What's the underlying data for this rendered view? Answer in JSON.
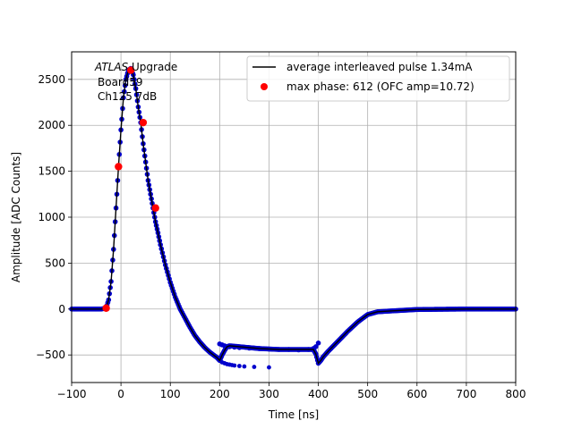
{
  "chart_data": {
    "type": "scatter",
    "title": "",
    "xlabel": "Time [ns]",
    "ylabel": "Amplitude [ADC Counts]",
    "xlim": [
      -100,
      800
    ],
    "ylim": [
      -800,
      2800
    ],
    "xticks": [
      -100,
      0,
      100,
      200,
      300,
      400,
      500,
      600,
      700,
      800
    ],
    "yticks": [
      -500,
      0,
      500,
      1000,
      1500,
      2000,
      2500
    ],
    "grid": true,
    "legend_position": "top-right",
    "annotation": {
      "line1_italic": "ATLAS",
      "line1_rest": " Upgrade",
      "line2": "Board59",
      "line3": "Ch125 7dB"
    },
    "series": [
      {
        "name": "average interleaved pulse 1.34mA",
        "kind": "line",
        "color": "#000000",
        "x": [
          -100,
          -40,
          -30,
          -25,
          -20,
          -15,
          -10,
          -5,
          0,
          5,
          10,
          15,
          20,
          25,
          30,
          35,
          40,
          45,
          50,
          55,
          60,
          65,
          70,
          75,
          80,
          90,
          100,
          110,
          120,
          130,
          140,
          150,
          160,
          170,
          180,
          190,
          195,
          200,
          205,
          210,
          215,
          220,
          240,
          260,
          280,
          300,
          320,
          340,
          360,
          380,
          390,
          395,
          400,
          405,
          410,
          420,
          440,
          460,
          480,
          500,
          520,
          550,
          600,
          700,
          800
        ],
        "y": [
          0,
          0,
          10,
          100,
          300,
          650,
          1100,
          1550,
          1950,
          2300,
          2500,
          2600,
          2620,
          2550,
          2400,
          2200,
          2030,
          1800,
          1600,
          1400,
          1250,
          1100,
          950,
          830,
          700,
          480,
          290,
          130,
          0,
          -100,
          -200,
          -290,
          -360,
          -420,
          -470,
          -510,
          -530,
          -560,
          -500,
          -450,
          -410,
          -400,
          -410,
          -420,
          -430,
          -435,
          -440,
          -440,
          -440,
          -440,
          -440,
          -490,
          -590,
          -560,
          -520,
          -460,
          -350,
          -240,
          -140,
          -60,
          -30,
          -20,
          -5,
          0,
          0
        ]
      },
      {
        "name": "",
        "kind": "scatter",
        "color": "#0000cc",
        "x": [
          -100,
          -40,
          -30,
          -25,
          -20,
          -15,
          -10,
          -5,
          0,
          5,
          10,
          15,
          20,
          25,
          30,
          35,
          40,
          45,
          50,
          55,
          60,
          65,
          70,
          75,
          80,
          90,
          100,
          110,
          120,
          130,
          140,
          150,
          160,
          170,
          180,
          190,
          195,
          200,
          205,
          210,
          215,
          220,
          240,
          260,
          280,
          300,
          320,
          340,
          360,
          380,
          390,
          395,
          400,
          405,
          410,
          420,
          440,
          460,
          480,
          500,
          520,
          550,
          600,
          700,
          800
        ],
        "y": [
          0,
          0,
          10,
          100,
          300,
          650,
          1100,
          1550,
          1950,
          2300,
          2500,
          2600,
          2620,
          2550,
          2400,
          2200,
          2030,
          1800,
          1600,
          1400,
          1250,
          1100,
          950,
          830,
          700,
          480,
          290,
          130,
          0,
          -100,
          -200,
          -290,
          -360,
          -420,
          -470,
          -510,
          -530,
          -560,
          -500,
          -450,
          -410,
          -400,
          -410,
          -420,
          -430,
          -435,
          -440,
          -440,
          -440,
          -440,
          -440,
          -490,
          -590,
          -560,
          -520,
          -460,
          -350,
          -240,
          -140,
          -60,
          -30,
          -20,
          -5,
          0,
          0
        ],
        "x_stray_lower": [
          200,
          205,
          210,
          215,
          220,
          225,
          230,
          240,
          250,
          270,
          300
        ],
        "y_stray_lower": [
          -560,
          -580,
          -590,
          -600,
          -605,
          -610,
          -615,
          -620,
          -625,
          -630,
          -635
        ],
        "x_stray_upper": [
          200,
          205,
          210,
          220,
          230,
          240,
          260,
          280,
          300,
          320,
          340,
          360,
          380,
          390,
          395,
          400
        ],
        "y_stray_upper": [
          -380,
          -390,
          -400,
          -410,
          -415,
          -420,
          -425,
          -430,
          -435,
          -440,
          -440,
          -445,
          -440,
          -430,
          -410,
          -370
        ]
      },
      {
        "name": "max phase: 612 (OFC amp=10.72)",
        "kind": "scatter",
        "color": "#ff0000",
        "x": [
          -30,
          -5,
          20,
          45,
          70
        ],
        "y": [
          10,
          1550,
          2600,
          2030,
          1100
        ]
      }
    ]
  }
}
